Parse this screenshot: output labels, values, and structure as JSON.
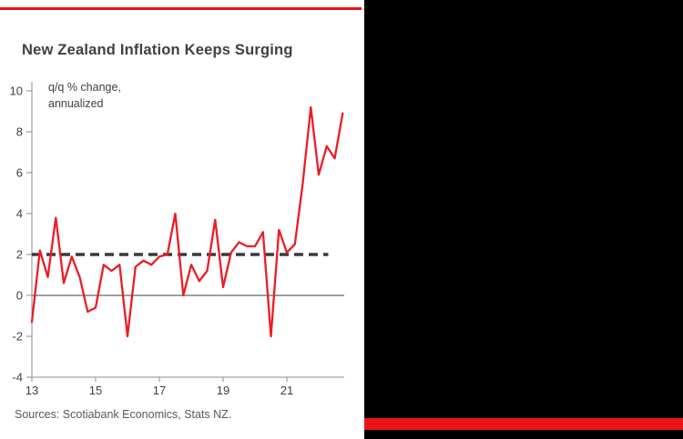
{
  "panel": {
    "title": "New Zealand Inflation Keeps Surging",
    "annotation_line1": "q/q % change,",
    "annotation_line2": "annualized",
    "sources": "Sources: Scotiabank Economics, Stats NZ."
  },
  "colors": {
    "scotia_red": "#EC111A",
    "line_red": "#ED1C24",
    "dashed_line": "#3a3a3a",
    "axis": "#8c8c8c",
    "zero_line": "#666666",
    "tick_text": "#404040",
    "backdrop": "#000000"
  },
  "chart_data": {
    "type": "line",
    "title": "New Zealand Inflation Keeps Surging",
    "subtitle_note": "q/q % change, annualized",
    "xlabel": "",
    "ylabel": "q/q % change, annualized",
    "ylim": [
      -4,
      10
    ],
    "xlim": [
      13,
      22.8
    ],
    "y_ticks": [
      10,
      8,
      6,
      4,
      2,
      0,
      -2,
      -4
    ],
    "x_ticks": [
      13,
      15,
      17,
      19,
      21
    ],
    "grid": false,
    "legend": "none",
    "target_line": {
      "value": 2,
      "style": "dashed",
      "x_end": 22.3,
      "color": "#3a3a3a"
    },
    "series": [
      {
        "name": "New Zealand CPI inflation, q/q % change annualized",
        "color": "#ED1C24",
        "x": [
          13,
          13.25,
          13.5,
          13.75,
          14,
          14.25,
          14.5,
          14.75,
          15,
          15.25,
          15.5,
          15.75,
          16,
          16.25,
          16.5,
          16.75,
          17,
          17.25,
          17.5,
          17.75,
          18,
          18.25,
          18.5,
          18.75,
          19,
          19.25,
          19.5,
          19.75,
          20,
          20.25,
          20.5,
          20.75,
          21,
          21.25,
          21.5,
          21.75,
          22,
          22.25,
          22.5,
          22.75
        ],
        "y": [
          -1.3,
          2.2,
          0.9,
          3.8,
          0.6,
          1.9,
          0.9,
          -0.8,
          -0.6,
          1.5,
          1.2,
          1.5,
          -2.0,
          1.4,
          1.7,
          1.5,
          1.9,
          2.0,
          4.0,
          0.0,
          1.5,
          0.7,
          1.2,
          3.7,
          0.4,
          2.1,
          2.6,
          2.4,
          2.4,
          3.1,
          -2.0,
          3.2,
          2.1,
          2.5,
          5.5,
          9.2,
          5.9,
          7.3,
          6.7,
          8.9
        ]
      }
    ]
  }
}
